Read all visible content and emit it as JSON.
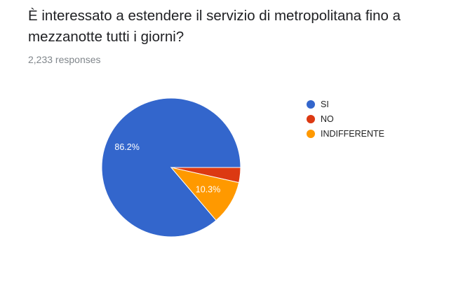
{
  "question": {
    "title": "È interessato a estendere il servizio di metropolitana fino a mezzanotte tutti i giorni?",
    "responses": "2,233 responses"
  },
  "chart_data": {
    "type": "pie",
    "categories": [
      "SI",
      "NO",
      "INDIFFERENTE"
    ],
    "values": [
      86.2,
      3.5,
      10.3
    ],
    "labels": [
      "86.2%",
      "",
      "10.3%"
    ],
    "colors": [
      "#3366cc",
      "#dc3912",
      "#ff9900"
    ],
    "legend": "right"
  }
}
